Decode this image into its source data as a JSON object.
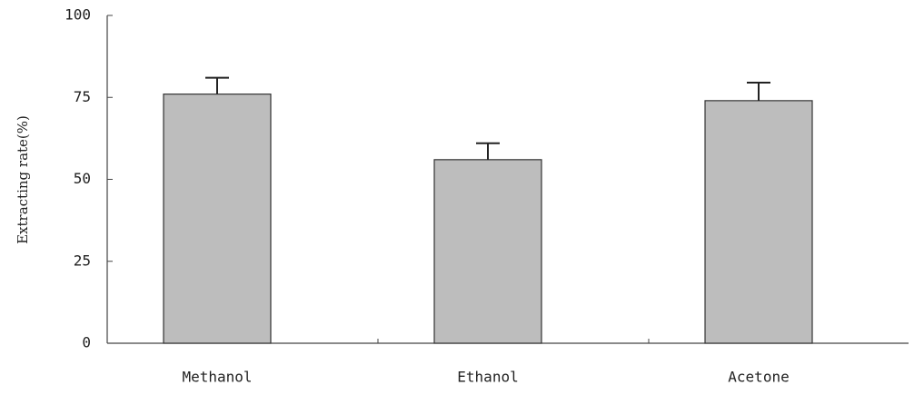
{
  "chart_data": {
    "type": "bar",
    "ylabel": "Extracting rate(%)",
    "categories": [
      "Methanol",
      "Ethanol",
      "Acetone"
    ],
    "values": [
      76,
      56,
      74
    ],
    "errors": [
      5,
      5,
      5.5
    ],
    "color": "#bdbdbd",
    "ylim": [
      0,
      100
    ],
    "yticks": [
      0,
      25,
      50,
      75,
      100
    ],
    "grid": false
  }
}
